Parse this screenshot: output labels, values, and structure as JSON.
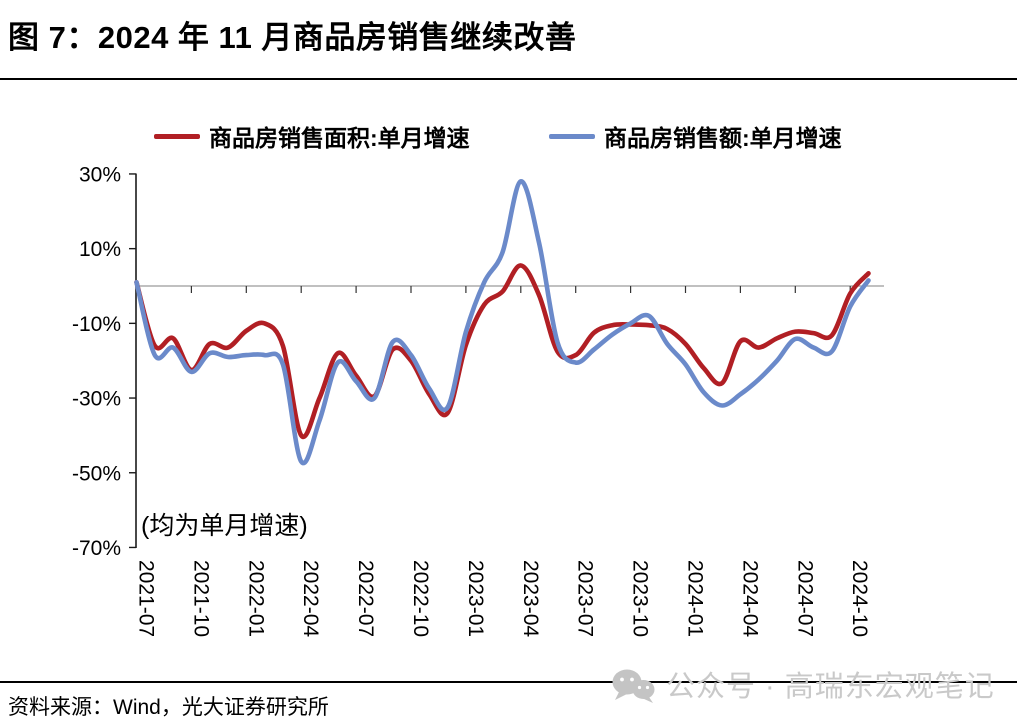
{
  "title": {
    "text": "图 7：2024 年 11 月商品房销售继续改善"
  },
  "legend": {
    "items": [
      {
        "label": "商品房销售面积:单月增速",
        "color": "#b11f24"
      },
      {
        "label": "商品房销售额:单月增速",
        "color": "#6b8aca"
      }
    ]
  },
  "annotation": {
    "text": "(均为单月增速)"
  },
  "footer": {
    "source": "资料来源：Wind，光大证券研究所"
  },
  "watermark": {
    "icon": "wechat-icon",
    "text": "公众号 · 高瑞东宏观笔记"
  },
  "chart_data": {
    "type": "line",
    "title": "图 7：2024 年 11 月商品房销售继续改善",
    "xlabel": "",
    "ylabel": "",
    "ylim": [
      -70,
      30
    ],
    "yticks": [
      30,
      10,
      -10,
      -30,
      -50,
      -70
    ],
    "ytick_labels": [
      "30%",
      "10%",
      "-10%",
      "-30%",
      "-50%",
      "-70%"
    ],
    "x_tick_labels": [
      "2021-07",
      "2021-10",
      "2022-01",
      "2022-04",
      "2022-07",
      "2022-10",
      "2023-01",
      "2023-04",
      "2023-07",
      "2023-10",
      "2024-01",
      "2024-04",
      "2024-07",
      "2024-10"
    ],
    "x": [
      "2021-07",
      "2021-08",
      "2021-09",
      "2021-10",
      "2021-11",
      "2021-12",
      "2022-01",
      "2022-02",
      "2022-03",
      "2022-04",
      "2022-05",
      "2022-06",
      "2022-07",
      "2022-08",
      "2022-09",
      "2022-10",
      "2022-11",
      "2022-12",
      "2023-01",
      "2023-02",
      "2023-03",
      "2023-04",
      "2023-05",
      "2023-06",
      "2023-07",
      "2023-08",
      "2023-09",
      "2023-10",
      "2023-11",
      "2023-12",
      "2024-01",
      "2024-02",
      "2024-03",
      "2024-04",
      "2024-05",
      "2024-06",
      "2024-07",
      "2024-08",
      "2024-09",
      "2024-10",
      "2024-11"
    ],
    "series": [
      {
        "name": "商品房销售面积:单月增速",
        "color": "#b11f24",
        "values": [
          1,
          -16,
          -14,
          -22.5,
          -15.5,
          -16.5,
          -12,
          -10,
          -16,
          -40,
          -30,
          -18,
          -24,
          -29.5,
          -17,
          -20,
          -29,
          -34,
          -15.8,
          -5,
          -1.5,
          5.5,
          -2.5,
          -17.5,
          -18.5,
          -12.5,
          -10.5,
          -10.3,
          -10.5,
          -11.5,
          -15.5,
          -22,
          -26,
          -14.8,
          -16.5,
          -14,
          -12.2,
          -12.6,
          -13.2,
          -2,
          3.4
        ]
      },
      {
        "name": "商品房销售额:单月增速",
        "color": "#6b8aca",
        "values": [
          1,
          -18.5,
          -16.5,
          -23,
          -18,
          -19,
          -18.5,
          -18.5,
          -21,
          -47,
          -36,
          -20.5,
          -25.5,
          -30,
          -15,
          -18.5,
          -27.5,
          -32.5,
          -12.3,
          1,
          9,
          28,
          11.5,
          -15,
          -20.5,
          -17,
          -13,
          -10,
          -8,
          -15.5,
          -21,
          -28.5,
          -32,
          -29,
          -25,
          -20,
          -14.2,
          -16.5,
          -17.5,
          -5.5,
          1.5
        ]
      }
    ],
    "annotation": "(均为单月增速)",
    "zero_line": true,
    "grid": false,
    "legend_position": "top",
    "smooth": true
  }
}
